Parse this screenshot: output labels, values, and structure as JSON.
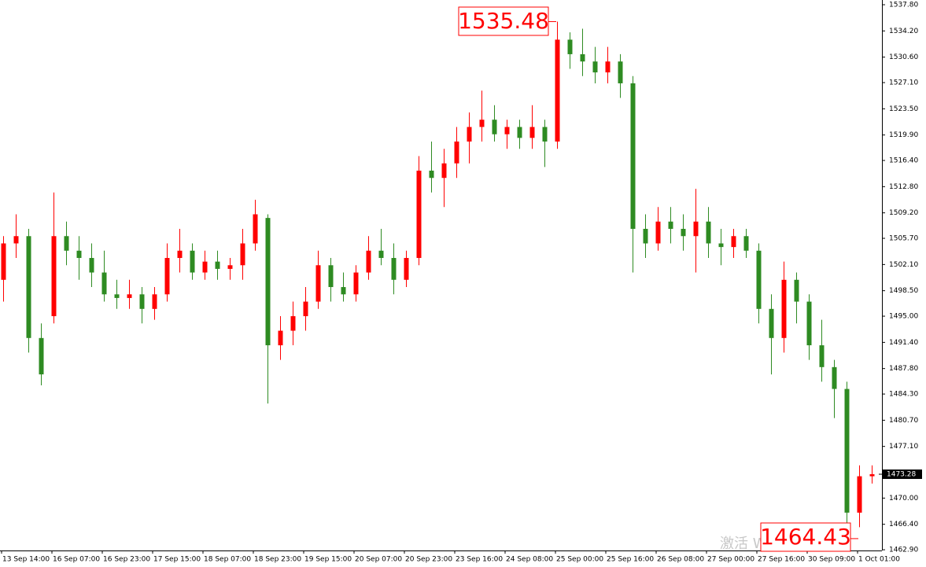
{
  "chart_data": {
    "type": "candlestick",
    "categories": [
      "13 Sep 14:00",
      null,
      null,
      null,
      "16 Sep 07:00",
      null,
      null,
      null,
      "16 Sep 23:00",
      null,
      null,
      null,
      "17 Sep 15:00",
      null,
      null,
      null,
      "18 Sep 07:00",
      null,
      null,
      null,
      "18 Sep 23:00",
      null,
      null,
      null,
      "19 Sep 15:00",
      null,
      null,
      null,
      "20 Sep 07:00",
      null,
      null,
      null,
      "20 Sep 23:00",
      null,
      null,
      null,
      "23 Sep 16:00",
      null,
      null,
      null,
      "24 Sep 08:00",
      null,
      null,
      null,
      "25 Sep 00:00",
      null,
      null,
      null,
      "25 Sep 16:00",
      null,
      null,
      null,
      "26 Sep 08:00",
      null,
      null,
      null,
      "27 Sep 00:00",
      null,
      null,
      null,
      "27 Sep 16:00",
      null,
      null,
      null,
      "30 Sep 09:00",
      null,
      null,
      null,
      "1 Oct 01:00",
      null
    ],
    "open": [
      1500,
      1505,
      1506,
      1492,
      1495,
      1506,
      1504,
      1503,
      1501,
      1498,
      1497.5,
      1498,
      1496,
      1498,
      1503,
      1504,
      1501,
      1502.5,
      1501.5,
      1502,
      1505,
      1508.5,
      1491,
      1493,
      1495,
      1497,
      1502,
      1499,
      1498,
      1501,
      1504,
      1503,
      1500,
      1503,
      1515,
      1514,
      1516,
      1519,
      1521,
      1522,
      1520,
      1521,
      1519.5,
      1521,
      1519,
      1533,
      1531,
      1530,
      1528.5,
      1530,
      1527,
      1507,
      1505,
      1508,
      1507,
      1506,
      1508,
      1505,
      1504.5,
      1506,
      1504,
      1496,
      1492,
      1500,
      1497,
      1491,
      1488,
      1485,
      1468,
      1473
    ],
    "high": [
      1506,
      1509,
      1507,
      1494,
      1512,
      1508,
      1506,
      1505,
      1504,
      1500,
      1500,
      1499,
      1499,
      1505,
      1507,
      1505,
      1504,
      1504,
      1503,
      1507,
      1511,
      1509,
      1495,
      1497,
      1499,
      1504,
      1503,
      1501,
      1502,
      1506,
      1507,
      1505,
      1504,
      1517,
      1519,
      1518,
      1521,
      1523,
      1526,
      1524,
      1522,
      1522,
      1524,
      1522,
      1535.48,
      1534,
      1534.5,
      1532,
      1532,
      1531,
      1528,
      1509,
      1510,
      1510,
      1509,
      1512.5,
      1510,
      1507,
      1507,
      1507,
      1505,
      1498,
      1502.5,
      1501,
      1498,
      1494.5,
      1489,
      1486,
      1474.5,
      1474.5
    ],
    "low": [
      1497,
      1503,
      1490,
      1485.5,
      1494,
      1502,
      1500,
      1499,
      1497,
      1496,
      1496,
      1494,
      1494.5,
      1497,
      1501,
      1500,
      1500,
      1500,
      1500,
      1500,
      1504,
      1483,
      1489,
      1491,
      1493,
      1496,
      1497,
      1497,
      1497,
      1500,
      1502,
      1498,
      1499,
      1502,
      1512,
      1510,
      1514,
      1516,
      1519,
      1519,
      1518,
      1518,
      1518,
      1515.5,
      1518,
      1529,
      1528,
      1527,
      1527,
      1525,
      1501,
      1503,
      1504,
      1505,
      1504,
      1501,
      1503,
      1502,
      1503,
      1503,
      1494,
      1487,
      1490,
      1494,
      1489,
      1486,
      1481,
      1464.43,
      1466,
      1472
    ],
    "close": [
      1505,
      1506,
      1492,
      1487,
      1506,
      1504,
      1503,
      1501,
      1498,
      1497.5,
      1498,
      1496,
      1498,
      1503,
      1504,
      1501,
      1502.5,
      1501.5,
      1502,
      1505,
      1509,
      1491,
      1493,
      1495,
      1497,
      1502,
      1499,
      1498,
      1501,
      1504,
      1503,
      1500,
      1503,
      1515,
      1514,
      1516,
      1519,
      1521,
      1522,
      1520,
      1521,
      1519.5,
      1521,
      1519,
      1533,
      1531,
      1530,
      1528.5,
      1530,
      1527,
      1507,
      1505,
      1508,
      1507,
      1506,
      1508,
      1505,
      1504.5,
      1506,
      1504,
      1496,
      1492,
      1500,
      1497,
      1491,
      1488,
      1485,
      1468,
      1473,
      1473.28
    ],
    "up_color": "#ff0000",
    "down_color": "#2e8b22",
    "ylim": [
      1462.8,
      1538.45
    ],
    "yticks": [
      {
        "value": 1537.8,
        "label": "1537.80"
      },
      {
        "value": 1534.2,
        "label": "1534.20"
      },
      {
        "value": 1530.6,
        "label": "1530.60"
      },
      {
        "value": 1527.1,
        "label": "1527.10"
      },
      {
        "value": 1523.5,
        "label": "1523.50"
      },
      {
        "value": 1519.9,
        "label": "1519.90"
      },
      {
        "value": 1516.4,
        "label": "1516.40"
      },
      {
        "value": 1512.8,
        "label": "1512.80"
      },
      {
        "value": 1509.2,
        "label": "1509.20"
      },
      {
        "value": 1505.7,
        "label": "1505.70"
      },
      {
        "value": 1502.1,
        "label": "1502.10"
      },
      {
        "value": 1498.5,
        "label": "1498.50"
      },
      {
        "value": 1495,
        "label": "1495.00"
      },
      {
        "value": 1491.4,
        "label": "1491.40"
      },
      {
        "value": 1487.8,
        "label": "1487.80"
      },
      {
        "value": 1484.3,
        "label": "1484.30"
      },
      {
        "value": 1480.7,
        "label": "1480.70"
      },
      {
        "value": 1477.1,
        "label": "1477.10"
      },
      {
        "value": 1470,
        "label": "1470.00"
      },
      {
        "value": 1466.4,
        "label": "1466.40"
      },
      {
        "value": 1462.9,
        "label": "1462.90"
      }
    ],
    "current_price": {
      "value": 1473.28,
      "label": "1473.28"
    },
    "max_label": {
      "value": 1535.48,
      "label": "1535.48"
    },
    "min_label": {
      "value": 1464.43,
      "label": "1464.43"
    },
    "watermark": "激活 Windows"
  }
}
